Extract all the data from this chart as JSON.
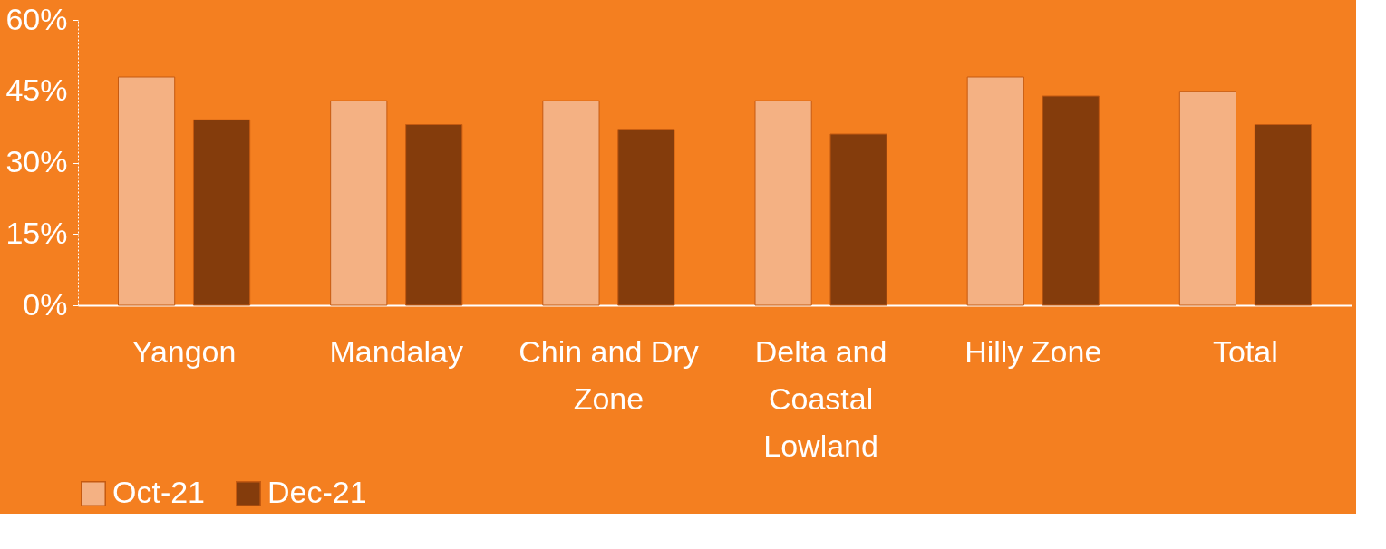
{
  "chart_data": {
    "type": "bar",
    "categories": [
      "Yangon",
      "Mandalay",
      "Chin and Dry Zone",
      "Delta and Coastal Lowland",
      "Hilly Zone",
      "Total"
    ],
    "series": [
      {
        "name": "Oct-21",
        "color": "#f4b183",
        "values": [
          48,
          43,
          43,
          43,
          48,
          45
        ]
      },
      {
        "name": "Dec-21",
        "color": "#843c0c",
        "values": [
          39,
          38,
          37,
          36,
          44,
          38
        ]
      }
    ],
    "ylim": [
      0,
      60
    ],
    "yticks": [
      {
        "value": 0,
        "label": "0%"
      },
      {
        "value": 15,
        "label": "15%"
      },
      {
        "value": 30,
        "label": "30%"
      },
      {
        "value": 45,
        "label": "45%"
      },
      {
        "value": 60,
        "label": "60%"
      }
    ],
    "grid": false,
    "legend": "bottom"
  }
}
